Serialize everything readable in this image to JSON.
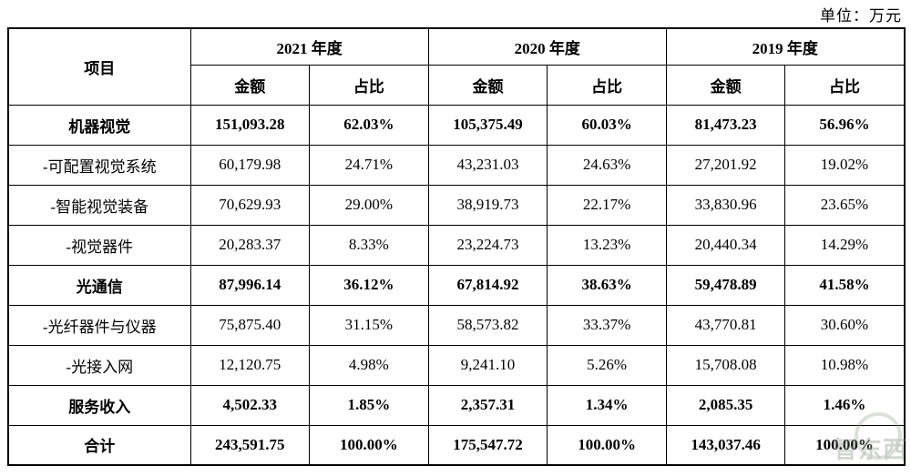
{
  "unit_label": "单位：万元",
  "table": {
    "header": {
      "item": "项目",
      "years": [
        "2021 年度",
        "2020 年度",
        "2019 年度"
      ],
      "amount_label": "金额",
      "ratio_label": "占比"
    },
    "rows": [
      {
        "label": "机器视觉",
        "bold": true,
        "total": false,
        "cells": [
          "151,093.28",
          "62.03%",
          "105,375.49",
          "60.03%",
          "81,473.23",
          "56.96%"
        ]
      },
      {
        "label": "-可配置视觉系统",
        "bold": false,
        "total": false,
        "cells": [
          "60,179.98",
          "24.71%",
          "43,231.03",
          "24.63%",
          "27,201.92",
          "19.02%"
        ]
      },
      {
        "label": "-智能视觉装备",
        "bold": false,
        "total": false,
        "cells": [
          "70,629.93",
          "29.00%",
          "38,919.73",
          "22.17%",
          "33,830.96",
          "23.65%"
        ]
      },
      {
        "label": "-视觉器件",
        "bold": false,
        "total": false,
        "cells": [
          "20,283.37",
          "8.33%",
          "23,224.73",
          "13.23%",
          "20,440.34",
          "14.29%"
        ]
      },
      {
        "label": "光通信",
        "bold": true,
        "total": false,
        "cells": [
          "87,996.14",
          "36.12%",
          "67,814.92",
          "38.63%",
          "59,478.89",
          "41.58%"
        ]
      },
      {
        "label": "-光纤器件与仪器",
        "bold": false,
        "total": false,
        "cells": [
          "75,875.40",
          "31.15%",
          "58,573.82",
          "33.37%",
          "43,770.81",
          "30.60%"
        ]
      },
      {
        "label": "-光接入网",
        "bold": false,
        "total": false,
        "cells": [
          "12,120.75",
          "4.98%",
          "9,241.10",
          "5.26%",
          "15,708.08",
          "10.98%"
        ]
      },
      {
        "label": "服务收入",
        "bold": true,
        "total": false,
        "cells": [
          "4,502.33",
          "1.85%",
          "2,357.31",
          "1.34%",
          "2,085.35",
          "1.46%"
        ]
      },
      {
        "label": "合计",
        "bold": true,
        "total": true,
        "cells": [
          "243,591.75",
          "100.00%",
          "175,547.72",
          "100.00%",
          "143,037.46",
          "100.00%"
        ]
      }
    ]
  },
  "watermark": {
    "text": "智东西"
  }
}
